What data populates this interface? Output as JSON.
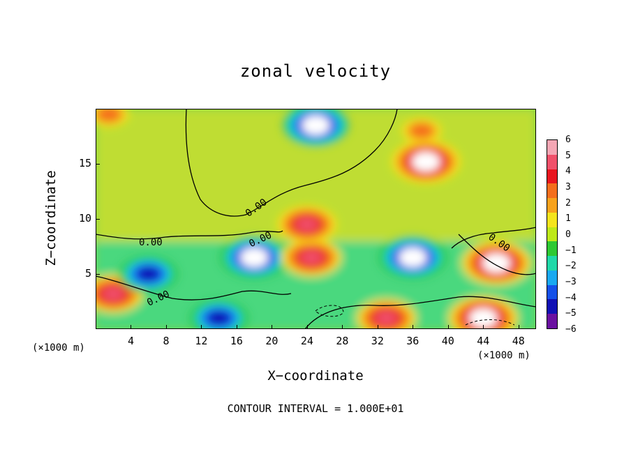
{
  "chart_data": {
    "type": "heatmap",
    "title": "zonal velocity",
    "xlabel": "X−coordinate",
    "ylabel": "Z−coordinate",
    "x_unit_left": "(×1000 m)",
    "x_unit_right": "(×1000 m)",
    "xlim": [
      0,
      50
    ],
    "ylim": [
      0,
      20
    ],
    "x_ticks": [
      "4",
      "8",
      "12",
      "16",
      "20",
      "24",
      "28",
      "32",
      "36",
      "40",
      "44",
      "48"
    ],
    "x_tick_values": [
      4,
      8,
      12,
      16,
      20,
      24,
      28,
      32,
      36,
      40,
      44,
      48
    ],
    "y_ticks": [
      "5",
      "10",
      "15"
    ],
    "y_tick_values": [
      5,
      10,
      15
    ],
    "colorbar": {
      "labels": [
        "6",
        "5",
        "4",
        "3",
        "2",
        "1",
        "0",
        "−1",
        "−2",
        "−3",
        "−4",
        "−5",
        "−6"
      ],
      "colors": [
        "#f4a6b4",
        "#f0506a",
        "#e8141e",
        "#f46e1c",
        "#f7a21c",
        "#f4e41c",
        "#bde818",
        "#2ec832",
        "#20d8a8",
        "#18a8f0",
        "#1450e8",
        "#1010b4",
        "#6a10a0"
      ]
    },
    "contour_level_label": "0.00",
    "footnote": "CONTOUR INTERVAL = 1.000E+01",
    "features": [
      {
        "x": 25,
        "z": 18.5,
        "value": -6
      },
      {
        "x": 37.5,
        "z": 15.2,
        "value": 6
      },
      {
        "x": 18,
        "z": 6.5,
        "value": -6
      },
      {
        "x": 36,
        "z": 6.5,
        "value": -6
      },
      {
        "x": 45.5,
        "z": 6,
        "value": 6
      },
      {
        "x": 24.5,
        "z": 6.5,
        "value": 5
      },
      {
        "x": 24,
        "z": 9.5,
        "value": 5
      },
      {
        "x": 2,
        "z": 3.2,
        "value": 5
      },
      {
        "x": 6,
        "z": 5,
        "value": -5
      },
      {
        "x": 14,
        "z": 1,
        "value": -5
      },
      {
        "x": 33,
        "z": 1,
        "value": 5
      },
      {
        "x": 44,
        "z": 1,
        "value": 6
      },
      {
        "x": 1.5,
        "z": 19.5,
        "value": 3
      },
      {
        "x": 37,
        "z": 18,
        "value": 3
      }
    ]
  }
}
